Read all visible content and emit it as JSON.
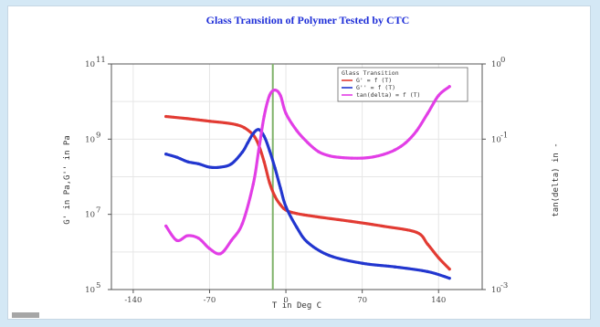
{
  "chart_data": {
    "type": "line",
    "title": "Glass Transition of Polymer Tested by CTC",
    "xlabel": "T  in Deg C",
    "ylabel_left": "G'  in Pa,G''  in Pa",
    "ylabel_right": "tan(delta) in -",
    "xlim": [
      -160,
      180
    ],
    "x_ticks": [
      "-140",
      "-70",
      "0",
      "70",
      "140"
    ],
    "x_tick_values": [
      -140,
      -70,
      0,
      70,
      140
    ],
    "left_axis": {
      "scale": "log",
      "ylim": [
        100000,
        100000000000
      ],
      "tick_exps": [
        5,
        7,
        9,
        11
      ],
      "major_exps": [
        5,
        6,
        7,
        8,
        9,
        10,
        11
      ],
      "tick_base": "10"
    },
    "right_axis": {
      "scale": "log",
      "ylim": [
        0.001,
        1
      ],
      "tick_labels": [
        "10",
        "10",
        "10"
      ],
      "tick_exps": [
        "-3",
        "-1",
        "0"
      ],
      "tick_values": [
        0.001,
        0.1,
        1
      ]
    },
    "vertical_marker": {
      "x": -12,
      "color": "#7fb26a"
    },
    "legend": {
      "title": "Glass Transition",
      "placement": "top-right",
      "entries": [
        "G'  = f (T)",
        "G''  = f (T)",
        "tan(delta) = f (T)"
      ]
    },
    "series": [
      {
        "name": "G'  = f (T)",
        "axis": "left",
        "color": "#e23b33",
        "x": [
          -110,
          -90,
          -70,
          -55,
          -45,
          -38,
          -30,
          -25,
          -20,
          -15,
          -10,
          -5,
          0,
          10,
          30,
          60,
          90,
          120,
          130,
          140,
          150
        ],
        "y": [
          4000000000.0,
          3500000000.0,
          3000000000.0,
          2700000000.0,
          2400000000.0,
          2000000000.0,
          1300000000.0,
          700000000.0,
          250000000.0,
          70000000.0,
          30000000.0,
          18000000.0,
          13000000.0,
          10500000.0,
          8500000.0,
          6500000.0,
          4800000.0,
          3300000.0,
          1600000.0,
          700000.0,
          350000.0
        ]
      },
      {
        "name": "G''  = f (T)",
        "axis": "left",
        "color": "#2236cf",
        "x": [
          -110,
          -100,
          -90,
          -80,
          -70,
          -60,
          -50,
          -40,
          -35,
          -30,
          -25,
          -20,
          -15,
          -10,
          -5,
          0,
          10,
          20,
          40,
          70,
          100,
          130,
          150
        ],
        "y": [
          400000000.0,
          330000000.0,
          250000000.0,
          220000000.0,
          180000000.0,
          180000000.0,
          220000000.0,
          450000000.0,
          800000000.0,
          1400000000.0,
          1800000000.0,
          1200000000.0,
          500000000.0,
          170000000.0,
          50000000.0,
          16000000.0,
          4500000.0,
          1800000.0,
          800000.0,
          500000.0,
          400000.0,
          300000.0,
          200000.0
        ]
      },
      {
        "name": "tan(delta) = f (T)",
        "axis": "right",
        "color": "#e23ee6",
        "x": [
          -110,
          -100,
          -90,
          -80,
          -70,
          -60,
          -50,
          -40,
          -30,
          -25,
          -20,
          -15,
          -10,
          -5,
          0,
          10,
          20,
          30,
          40,
          50,
          60,
          70,
          80,
          90,
          100,
          110,
          120,
          130,
          140,
          150
        ],
        "y": [
          0.007,
          0.0045,
          0.0052,
          0.0048,
          0.0035,
          0.003,
          0.0045,
          0.0075,
          0.025,
          0.07,
          0.2,
          0.38,
          0.45,
          0.38,
          0.22,
          0.13,
          0.09,
          0.068,
          0.06,
          0.057,
          0.056,
          0.056,
          0.058,
          0.063,
          0.072,
          0.09,
          0.13,
          0.22,
          0.38,
          0.5
        ]
      }
    ]
  }
}
